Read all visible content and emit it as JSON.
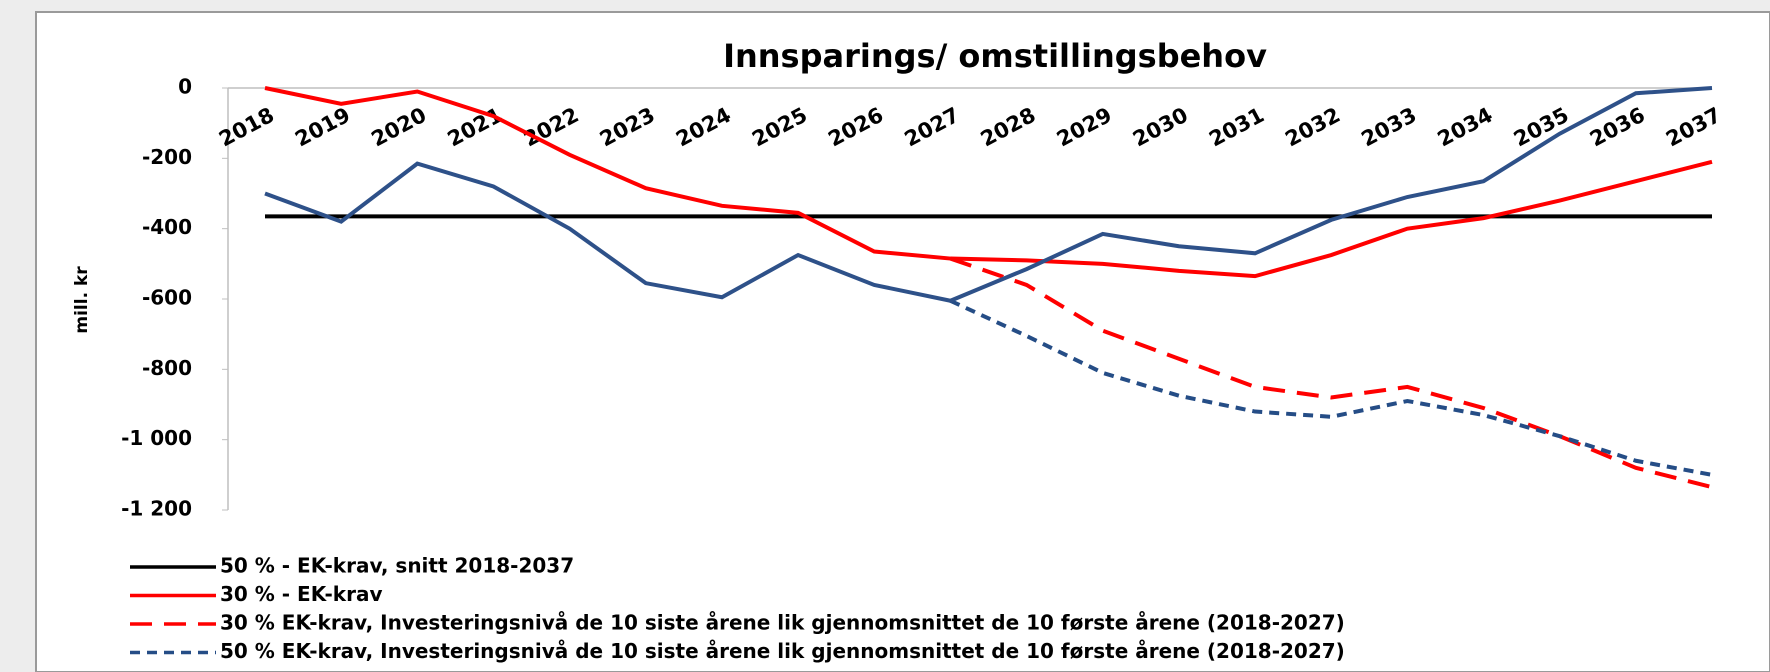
{
  "chart_data": {
    "type": "line",
    "title": "Innsparings/ omstillingsbehov",
    "y_label": "mill. kr",
    "categories": [
      "2018",
      "2019",
      "2020",
      "2021",
      "2022",
      "2023",
      "2024",
      "2025",
      "2026",
      "2027",
      "2028",
      "2029",
      "2030",
      "2031",
      "2032",
      "2033",
      "2034",
      "2035",
      "2036",
      "2037"
    ],
    "ylim": [
      -1200,
      0
    ],
    "yticks": [
      0,
      -200,
      -400,
      -600,
      -800,
      {
        "value": -1000,
        "label": "-1 000"
      },
      {
        "value": -1200,
        "label": "-1 200"
      }
    ],
    "series": [
      {
        "name": "50 % -  EK-krav, snitt 2018-2037",
        "color": "#000000",
        "dashed": false,
        "values": [
          -365,
          -365,
          -365,
          -365,
          -365,
          -365,
          -365,
          -365,
          -365,
          -365,
          -365,
          -365,
          -365,
          -365,
          -365,
          -365,
          -365,
          -365,
          -365,
          -365
        ]
      },
      {
        "name": "30 % - EK-krav",
        "color": "#ff0000",
        "dashed": false,
        "values": [
          0,
          -45,
          -10,
          -80,
          -190,
          -285,
          -335,
          -355,
          -465,
          -485,
          -490,
          -500,
          -520,
          -535,
          -475,
          -400,
          -370,
          -320,
          -265,
          -210
        ]
      },
      {
        "name": "30 % EK-krav, Investeringsnivå de 10 siste årene lik gjennomsnittet de 10 første årene (2018-2027)",
        "color": "#ff0000",
        "dashed": true,
        "values": [
          null,
          null,
          null,
          null,
          null,
          null,
          null,
          null,
          null,
          -485,
          -560,
          -690,
          -770,
          -850,
          -880,
          -850,
          -910,
          -990,
          -1080,
          -1135
        ]
      },
      {
        "name": "50 % EK-krav, Investeringsnivå de 10 siste årene lik gjennomsnittet de 10 første årene (2018-2027)",
        "color": "#254d86",
        "dashed": true,
        "values": [
          null,
          null,
          null,
          null,
          null,
          null,
          null,
          null,
          null,
          -605,
          -705,
          -810,
          -875,
          -920,
          -935,
          -890,
          -930,
          -990,
          -1060,
          -1100
        ]
      },
      {
        "color": "#2e5189",
        "dashed": false,
        "values": [
          -300,
          -380,
          -215,
          -280,
          -400,
          -555,
          -595,
          -475,
          -560,
          -605,
          -515,
          -415,
          -450,
          -470,
          -375,
          -310,
          -265,
          -130,
          -15,
          0
        ]
      }
    ]
  }
}
